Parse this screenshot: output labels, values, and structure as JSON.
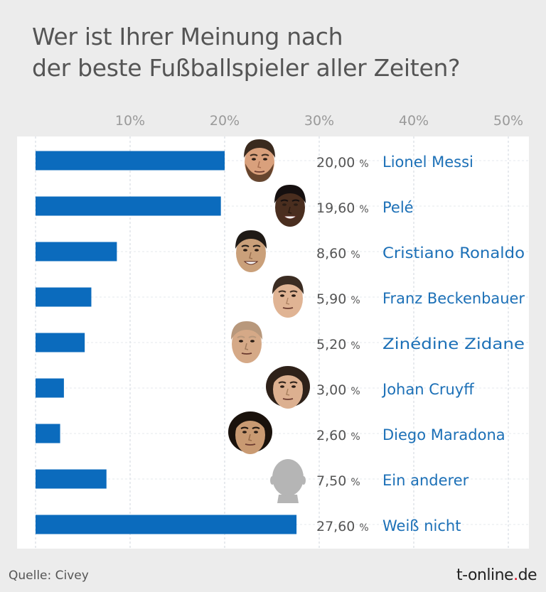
{
  "title_lines": [
    "Wer ist Ihrer Meinung nach",
    "der beste Fußballspieler aller Zeiten?"
  ],
  "source": "Quelle: Civey",
  "brand": {
    "prefix": "t-online",
    "dot": ".",
    "suffix": "de"
  },
  "colors": {
    "bar": "#0b6bbd",
    "label": "#1c70b7",
    "value": "#555555",
    "grid": "#cfd6de",
    "panel": "#ffffff",
    "page": "#ececec"
  },
  "chart_data": {
    "type": "bar",
    "orientation": "horizontal",
    "title": "Wer ist Ihrer Meinung nach der beste Fußballspieler aller Zeiten?",
    "xlim": [
      0,
      50
    ],
    "xticks": [
      10,
      20,
      30,
      40,
      50
    ],
    "xtick_labels": [
      "10%",
      "20%",
      "30%",
      "40%",
      "50%"
    ],
    "grid": true,
    "categories": [
      "Lionel Messi",
      "Pelé",
      "Cristiano Ronaldo",
      "Franz Beckenbauer",
      "Zinédine Zidane",
      "Johan Cruyff",
      "Diego Maradona",
      "Ein anderer",
      "Weiß nicht"
    ],
    "values": [
      20.0,
      19.6,
      8.6,
      5.9,
      5.2,
      3.0,
      2.6,
      7.5,
      27.6
    ],
    "value_labels": [
      "20,00",
      "19,60",
      "8,60",
      "5,90",
      "5,20",
      "3,00",
      "2,60",
      "7,50",
      "27,60"
    ],
    "value_unit": "%",
    "portraits": [
      "messi-portrait",
      "pele-portrait",
      "ronaldo-portrait",
      "beckenbauer-portrait",
      "zidane-portrait",
      "cruyff-portrait",
      "maradona-portrait",
      "silhouette-portrait",
      ""
    ]
  }
}
